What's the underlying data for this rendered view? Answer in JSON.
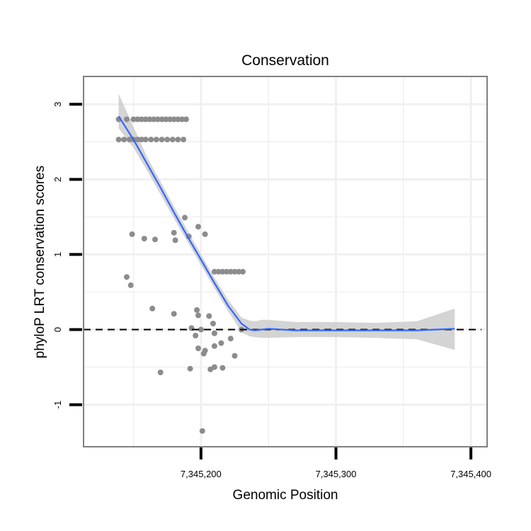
{
  "chart_data": {
    "type": "scatter",
    "title": "Conservation",
    "xlabel": "Genomic Position",
    "ylabel": "phyloP LRT conservation scores",
    "xlim": [
      7345113,
      7345412
    ],
    "ylim": [
      -1.56,
      3.37
    ],
    "x_ticks": [
      {
        "value": 7345200,
        "label": "7,345,200"
      },
      {
        "value": 7345300,
        "label": "7,345,300"
      },
      {
        "value": 7345400,
        "label": "7,345,400"
      }
    ],
    "y_ticks": [
      {
        "value": -1,
        "label": "-1"
      },
      {
        "value": 0,
        "label": "0"
      },
      {
        "value": 1,
        "label": "1"
      },
      {
        "value": 2,
        "label": "2"
      },
      {
        "value": 3,
        "label": "3"
      }
    ],
    "reference_line": {
      "y": 0,
      "style": "dashed"
    },
    "points": [
      {
        "x": 7345139,
        "y": 2.8
      },
      {
        "x": 7345145,
        "y": 2.8
      },
      {
        "x": 7345150,
        "y": 2.8
      },
      {
        "x": 7345153,
        "y": 2.8
      },
      {
        "x": 7345156,
        "y": 2.8
      },
      {
        "x": 7345159,
        "y": 2.8
      },
      {
        "x": 7345162,
        "y": 2.8
      },
      {
        "x": 7345165,
        "y": 2.8
      },
      {
        "x": 7345168,
        "y": 2.8
      },
      {
        "x": 7345171,
        "y": 2.8
      },
      {
        "x": 7345174,
        "y": 2.8
      },
      {
        "x": 7345177,
        "y": 2.8
      },
      {
        "x": 7345180,
        "y": 2.8
      },
      {
        "x": 7345183,
        "y": 2.8
      },
      {
        "x": 7345186,
        "y": 2.8
      },
      {
        "x": 7345189,
        "y": 2.8
      },
      {
        "x": 7345139,
        "y": 2.53
      },
      {
        "x": 7345143,
        "y": 2.53
      },
      {
        "x": 7345147,
        "y": 2.53
      },
      {
        "x": 7345150,
        "y": 2.53
      },
      {
        "x": 7345153,
        "y": 2.53
      },
      {
        "x": 7345156,
        "y": 2.53
      },
      {
        "x": 7345159,
        "y": 2.53
      },
      {
        "x": 7345163,
        "y": 2.53
      },
      {
        "x": 7345167,
        "y": 2.53
      },
      {
        "x": 7345171,
        "y": 2.53
      },
      {
        "x": 7345175,
        "y": 2.53
      },
      {
        "x": 7345179,
        "y": 2.53
      },
      {
        "x": 7345183,
        "y": 2.53
      },
      {
        "x": 7345187,
        "y": 2.53
      },
      {
        "x": 7345188,
        "y": 1.49
      },
      {
        "x": 7345198,
        "y": 1.37
      },
      {
        "x": 7345149,
        "y": 1.27
      },
      {
        "x": 7345180,
        "y": 1.29
      },
      {
        "x": 7345203,
        "y": 1.27
      },
      {
        "x": 7345191,
        "y": 1.24
      },
      {
        "x": 7345158,
        "y": 1.21
      },
      {
        "x": 7345166,
        "y": 1.2
      },
      {
        "x": 7345181,
        "y": 1.19
      },
      {
        "x": 7345145,
        "y": 0.7
      },
      {
        "x": 7345148,
        "y": 0.59
      },
      {
        "x": 7345210,
        "y": 0.77
      },
      {
        "x": 7345213,
        "y": 0.77
      },
      {
        "x": 7345216,
        "y": 0.77
      },
      {
        "x": 7345219,
        "y": 0.77
      },
      {
        "x": 7345222,
        "y": 0.77
      },
      {
        "x": 7345225,
        "y": 0.77
      },
      {
        "x": 7345228,
        "y": 0.77
      },
      {
        "x": 7345231,
        "y": 0.77
      },
      {
        "x": 7345164,
        "y": 0.28
      },
      {
        "x": 7345197,
        "y": 0.26
      },
      {
        "x": 7345180,
        "y": 0.21
      },
      {
        "x": 7345198,
        "y": 0.19
      },
      {
        "x": 7345206,
        "y": 0.18
      },
      {
        "x": 7345209,
        "y": 0.08
      },
      {
        "x": 7345193,
        "y": 0.02
      },
      {
        "x": 7345200,
        "y": 0.0
      },
      {
        "x": 7345230,
        "y": 0.0
      },
      {
        "x": 7345210,
        "y": -0.05
      },
      {
        "x": 7345196,
        "y": -0.08
      },
      {
        "x": 7345222,
        "y": -0.12
      },
      {
        "x": 7345215,
        "y": -0.18
      },
      {
        "x": 7345210,
        "y": -0.22
      },
      {
        "x": 7345198,
        "y": -0.25
      },
      {
        "x": 7345203,
        "y": -0.28
      },
      {
        "x": 7345202,
        "y": -0.32
      },
      {
        "x": 7345225,
        "y": -0.35
      },
      {
        "x": 7345192,
        "y": -0.52
      },
      {
        "x": 7345207,
        "y": -0.53
      },
      {
        "x": 7345216,
        "y": -0.51
      },
      {
        "x": 7345210,
        "y": -0.5
      },
      {
        "x": 7345170,
        "y": -0.57
      },
      {
        "x": 7345201,
        "y": -1.35
      }
    ],
    "smooth_fit": {
      "x": [
        7345139,
        7345150,
        7345160,
        7345170,
        7345180,
        7345190,
        7345200,
        7345210,
        7345220,
        7345230,
        7345236,
        7345240,
        7345245,
        7345250,
        7345270,
        7345300,
        7345330,
        7345360,
        7345388
      ],
      "y": [
        2.84,
        2.53,
        2.21,
        1.89,
        1.56,
        1.24,
        0.93,
        0.62,
        0.32,
        0.08,
        0.0,
        -0.01,
        0.0,
        0.01,
        -0.01,
        -0.01,
        -0.01,
        -0.01,
        0.01
      ],
      "lower": [
        2.68,
        2.42,
        2.12,
        1.8,
        1.48,
        1.17,
        0.86,
        0.55,
        0.25,
        -0.03,
        -0.09,
        -0.1,
        -0.11,
        -0.11,
        -0.1,
        -0.1,
        -0.11,
        -0.13,
        -0.27
      ],
      "upper": [
        3.14,
        2.7,
        2.3,
        1.97,
        1.64,
        1.32,
        1.0,
        0.69,
        0.4,
        0.16,
        0.12,
        0.11,
        0.13,
        0.13,
        0.1,
        0.1,
        0.09,
        0.11,
        0.28
      ]
    },
    "colors": {
      "points": "#8c8c8c",
      "smooth_line": "#3366ff",
      "ribbon": "#cccccc",
      "panel_border": "#808080",
      "grid": "#f0f0f0",
      "reference_line": "#000000"
    }
  }
}
